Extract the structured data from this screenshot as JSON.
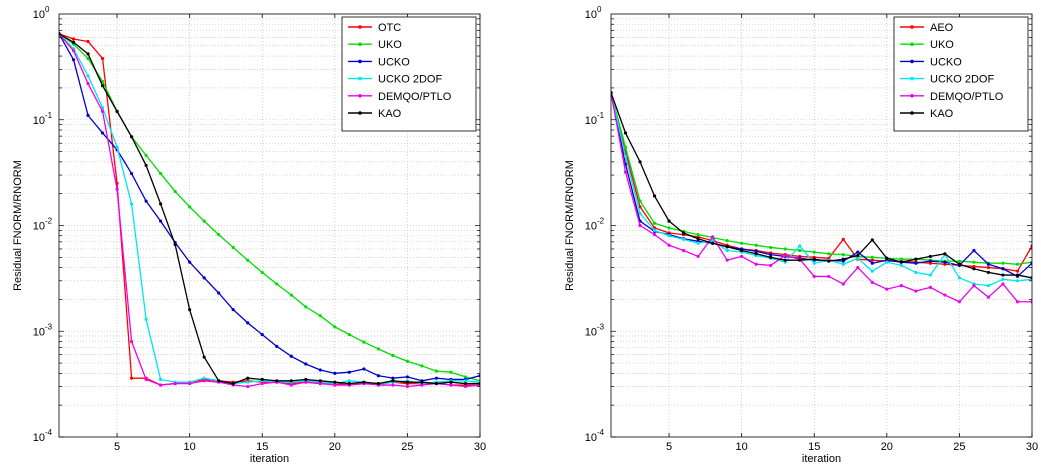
{
  "chart_data": [
    {
      "type": "line",
      "xlabel": "iteration",
      "ylabel": "Residual FNORM/RNORM",
      "yscale": "log",
      "xlim": [
        1,
        30
      ],
      "ylim": [
        0.0001,
        1
      ],
      "x_ticks": [
        5,
        10,
        15,
        20,
        25,
        30
      ],
      "y_ticks": [
        {
          "base": "10",
          "exp": "-4",
          "value": 0.0001
        },
        {
          "base": "10",
          "exp": "-3",
          "value": 0.001
        },
        {
          "base": "10",
          "exp": "-2",
          "value": 0.01
        },
        {
          "base": "10",
          "exp": "-1",
          "value": 0.1
        },
        {
          "base": "10",
          "exp": "0",
          "value": 1
        }
      ],
      "grid": true,
      "legend_position": "top-right",
      "series": [
        {
          "name": "OTC",
          "color": "#ff0000",
          "values": [
            0.65,
            0.58,
            0.55,
            0.38,
            0.025,
            0.00036,
            0.00036,
            0.00031,
            0.00032,
            0.00033,
            0.00035,
            0.00034,
            0.00033,
            0.00034,
            0.00033,
            0.00033,
            0.00032,
            0.00033,
            0.00032,
            0.00032,
            0.00031,
            0.00032,
            0.00032,
            0.00033,
            0.00032,
            0.00032,
            0.00032,
            0.00031,
            0.00031,
            0.00031
          ]
        },
        {
          "name": "UKO",
          "color": "#00dd00",
          "values": [
            0.65,
            0.52,
            0.38,
            0.23,
            0.12,
            0.069,
            0.046,
            0.031,
            0.021,
            0.015,
            0.011,
            0.0082,
            0.0062,
            0.0047,
            0.0036,
            0.0028,
            0.0022,
            0.0017,
            0.0014,
            0.0011,
            0.00093,
            0.00079,
            0.00068,
            0.00059,
            0.00052,
            0.00047,
            0.00042,
            0.00041,
            0.00037,
            0.00034
          ]
        },
        {
          "name": "UCKO",
          "color": "#0000cc",
          "values": [
            0.65,
            0.37,
            0.11,
            0.075,
            0.052,
            0.031,
            0.017,
            0.011,
            0.0069,
            0.0045,
            0.0032,
            0.0023,
            0.0016,
            0.0012,
            0.00093,
            0.00072,
            0.00058,
            0.00049,
            0.00043,
            0.0004,
            0.00041,
            0.00044,
            0.00038,
            0.00036,
            0.00037,
            0.00034,
            0.00036,
            0.00035,
            0.00035,
            0.00038
          ]
        },
        {
          "name": "UCKO 2DOF",
          "color": "#00e5ee",
          "values": [
            0.65,
            0.47,
            0.26,
            0.13,
            0.055,
            0.016,
            0.0013,
            0.00035,
            0.00033,
            0.00033,
            0.00036,
            0.00034,
            0.00032,
            0.00033,
            0.00034,
            0.00033,
            0.00033,
            0.00034,
            0.00033,
            0.00032,
            0.00034,
            0.00033,
            0.00031,
            0.00033,
            0.00034,
            0.00032,
            0.00033,
            0.00034,
            0.00034,
            0.00033
          ]
        },
        {
          "name": "DEMQO/PTLO",
          "color": "#ee00ee",
          "values": [
            0.65,
            0.45,
            0.22,
            0.12,
            0.022,
            0.0008,
            0.00035,
            0.00031,
            0.00032,
            0.00032,
            0.00034,
            0.00033,
            0.00031,
            0.0003,
            0.00032,
            0.00033,
            0.00031,
            0.00033,
            0.00032,
            0.00031,
            0.00031,
            0.00032,
            0.00031,
            0.00031,
            0.0003,
            0.00031,
            0.00032,
            0.00031,
            0.0003,
            0.00031
          ]
        },
        {
          "name": "KAO",
          "color": "#000000",
          "values": [
            0.65,
            0.54,
            0.42,
            0.21,
            0.12,
            0.069,
            0.037,
            0.016,
            0.0066,
            0.0016,
            0.00057,
            0.00034,
            0.00032,
            0.00036,
            0.00035,
            0.00034,
            0.00034,
            0.00035,
            0.00034,
            0.00033,
            0.00032,
            0.00033,
            0.00032,
            0.00034,
            0.00033,
            0.00033,
            0.00032,
            0.00033,
            0.00032,
            0.00032
          ]
        }
      ]
    },
    {
      "type": "line",
      "xlabel": "iteration",
      "ylabel": "Residual FNORM/RNORM",
      "yscale": "log",
      "xlim": [
        1,
        30
      ],
      "ylim": [
        0.0001,
        1
      ],
      "x_ticks": [
        5,
        10,
        15,
        20,
        25,
        30
      ],
      "y_ticks": [
        {
          "base": "10",
          "exp": "-4",
          "value": 0.0001
        },
        {
          "base": "10",
          "exp": "-3",
          "value": 0.001
        },
        {
          "base": "10",
          "exp": "-2",
          "value": 0.01
        },
        {
          "base": "10",
          "exp": "-1",
          "value": 0.1
        },
        {
          "base": "10",
          "exp": "0",
          "value": 1
        }
      ],
      "grid": true,
      "legend_position": "top-right",
      "series": [
        {
          "name": "AEO",
          "color": "#ff0000",
          "values": [
            0.18,
            0.05,
            0.015,
            0.0095,
            0.0085,
            0.0082,
            0.0078,
            0.0072,
            0.0065,
            0.006,
            0.0058,
            0.0055,
            0.0053,
            0.0051,
            0.005,
            0.0049,
            0.0074,
            0.0048,
            0.0047,
            0.0046,
            0.0046,
            0.0045,
            0.0044,
            0.0043,
            0.0042,
            0.0041,
            0.004,
            0.0039,
            0.0037,
            0.0064
          ]
        },
        {
          "name": "UKO",
          "color": "#00dd00",
          "values": [
            0.18,
            0.055,
            0.017,
            0.0105,
            0.0095,
            0.0088,
            0.0082,
            0.0077,
            0.0072,
            0.0068,
            0.0065,
            0.0062,
            0.006,
            0.0058,
            0.0056,
            0.0054,
            0.0053,
            0.0051,
            0.005,
            0.0049,
            0.0048,
            0.0048,
            0.0047,
            0.0046,
            0.0046,
            0.0045,
            0.0044,
            0.0044,
            0.0043,
            0.0045
          ]
        },
        {
          "name": "UCKO",
          "color": "#0000cc",
          "values": [
            0.18,
            0.038,
            0.011,
            0.0088,
            0.0082,
            0.0075,
            0.0071,
            0.0068,
            0.0063,
            0.006,
            0.0057,
            0.0053,
            0.0051,
            0.0049,
            0.0047,
            0.0047,
            0.0046,
            0.0056,
            0.0044,
            0.0047,
            0.0045,
            0.0044,
            0.0046,
            0.0045,
            0.0042,
            0.0058,
            0.0043,
            0.0039,
            0.0033,
            0.0044
          ]
        },
        {
          "name": "UCKO 2DOF",
          "color": "#00e5ee",
          "values": [
            0.18,
            0.045,
            0.013,
            0.009,
            0.008,
            0.0074,
            0.0068,
            0.0072,
            0.0058,
            0.0056,
            0.0052,
            0.0049,
            0.0045,
            0.0064,
            0.0044,
            0.0047,
            0.0043,
            0.0049,
            0.0037,
            0.0045,
            0.0042,
            0.0036,
            0.0034,
            0.0053,
            0.0032,
            0.0028,
            0.0027,
            0.0031,
            0.003,
            0.0031
          ]
        },
        {
          "name": "DEMQO/PTLO",
          "color": "#ee00ee",
          "values": [
            0.18,
            0.032,
            0.01,
            0.0082,
            0.0065,
            0.0058,
            0.0051,
            0.0078,
            0.0047,
            0.0051,
            0.0043,
            0.0042,
            0.0052,
            0.0048,
            0.0033,
            0.0033,
            0.0028,
            0.004,
            0.0029,
            0.0025,
            0.0027,
            0.0024,
            0.0026,
            0.0022,
            0.0019,
            0.0027,
            0.0021,
            0.0028,
            0.0019,
            0.0019
          ]
        },
        {
          "name": "KAO",
          "color": "#000000",
          "values": [
            0.18,
            0.075,
            0.04,
            0.019,
            0.011,
            0.0085,
            0.0075,
            0.0068,
            0.0063,
            0.0058,
            0.0054,
            0.005,
            0.0047,
            0.0047,
            0.0048,
            0.0046,
            0.0048,
            0.0052,
            0.0073,
            0.0049,
            0.0045,
            0.0048,
            0.0051,
            0.0054,
            0.0043,
            0.0039,
            0.0036,
            0.0034,
            0.0034,
            0.0032
          ]
        }
      ]
    }
  ]
}
